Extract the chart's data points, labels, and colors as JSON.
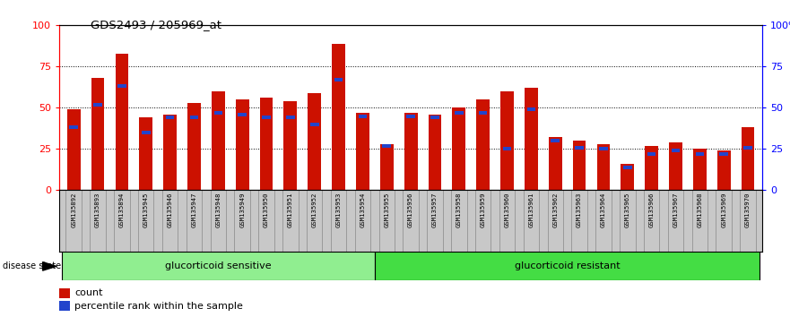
{
  "title": "GDS2493 / 205969_at",
  "samples": [
    "GSM135892",
    "GSM135893",
    "GSM135894",
    "GSM135945",
    "GSM135946",
    "GSM135947",
    "GSM135948",
    "GSM135949",
    "GSM135950",
    "GSM135951",
    "GSM135952",
    "GSM135953",
    "GSM135954",
    "GSM135955",
    "GSM135956",
    "GSM135957",
    "GSM135958",
    "GSM135959",
    "GSM135960",
    "GSM135961",
    "GSM135962",
    "GSM135963",
    "GSM135964",
    "GSM135965",
    "GSM135966",
    "GSM135967",
    "GSM135968",
    "GSM135969",
    "GSM135970"
  ],
  "count_values": [
    49,
    68,
    83,
    44,
    46,
    53,
    60,
    55,
    56,
    54,
    59,
    89,
    47,
    28,
    47,
    46,
    50,
    55,
    60,
    62,
    32,
    30,
    28,
    16,
    27,
    29,
    25,
    24,
    38
  ],
  "percentile_values": [
    38,
    52,
    63,
    35,
    44,
    44,
    47,
    46,
    44,
    44,
    40,
    67,
    45,
    27,
    45,
    44,
    47,
    47,
    25,
    49,
    30,
    26,
    25,
    14,
    22,
    24,
    22,
    22,
    26
  ],
  "group1_label": "glucorticoid sensitive",
  "group2_label": "glucorticoid resistant",
  "group1_count": 13,
  "group2_count": 16,
  "group1_color": "#90EE90",
  "group2_color": "#44DD44",
  "bar_color": "#CC1100",
  "percentile_color": "#2244CC",
  "yticks": [
    0,
    25,
    50,
    75,
    100
  ],
  "legend_count": "count",
  "legend_percentile": "percentile rank within the sample",
  "disease_state_label": "disease state"
}
